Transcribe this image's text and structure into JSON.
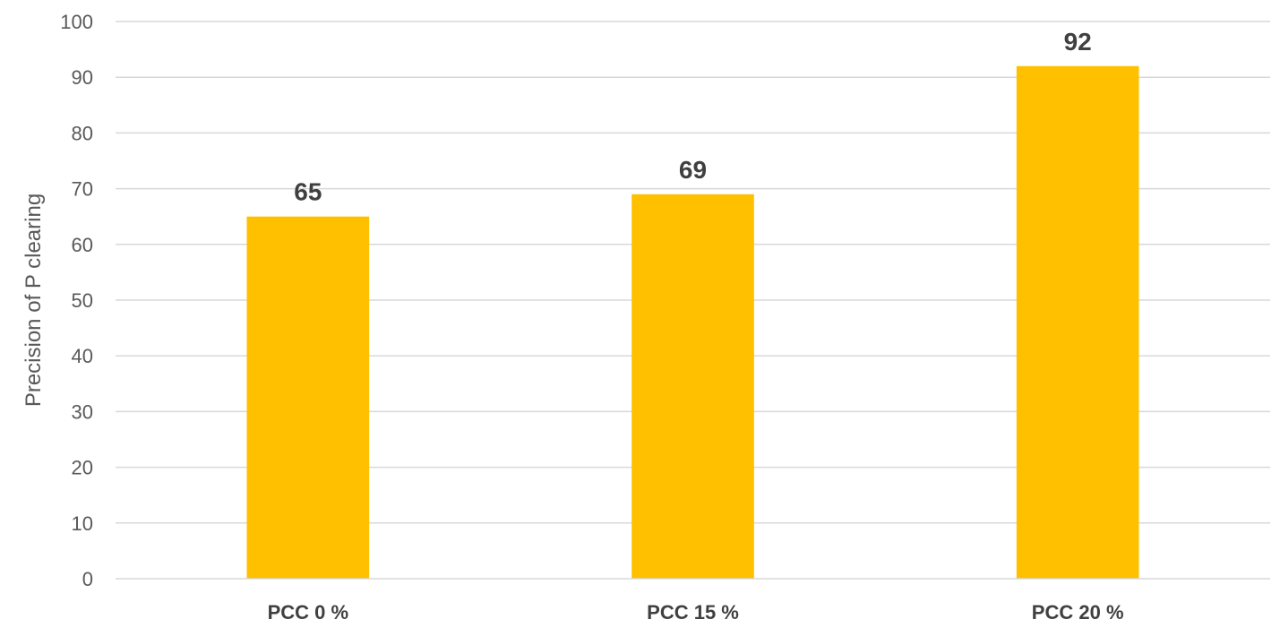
{
  "chart_data": {
    "type": "bar",
    "title": "",
    "xlabel": "",
    "ylabel": "Precision of P clearing",
    "categories": [
      "PCC 0 %",
      "PCC 15 %",
      "PCC 20 %"
    ],
    "values": [
      65,
      69,
      92
    ],
    "data_labels": [
      "65",
      "69",
      "92"
    ],
    "ylim": [
      0,
      100
    ],
    "yticks": [
      0,
      10,
      20,
      30,
      40,
      50,
      60,
      70,
      80,
      90,
      100
    ],
    "grid": true,
    "legend": "none",
    "bar_color": "#FFC000",
    "grid_color": "#D9D9D9"
  }
}
